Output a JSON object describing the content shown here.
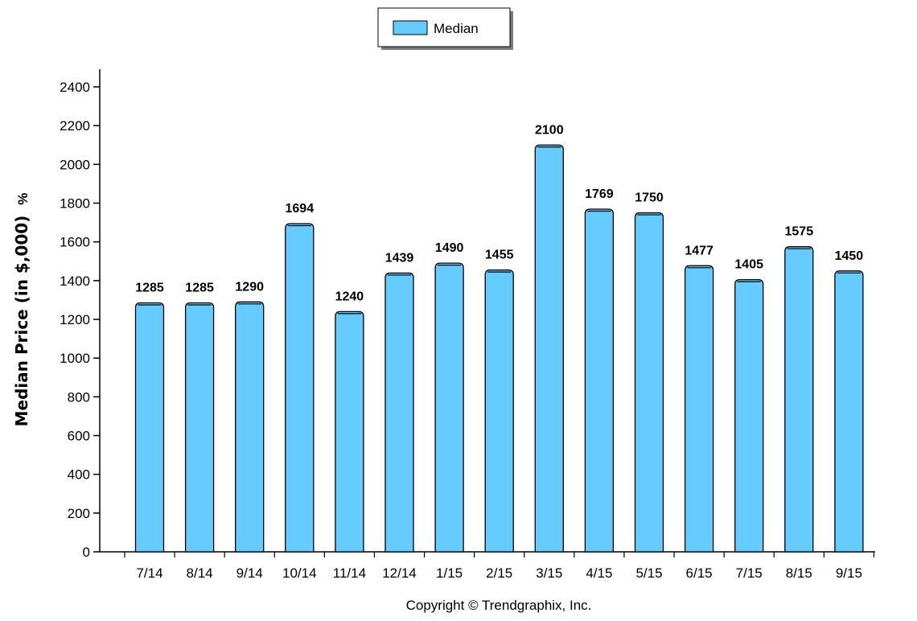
{
  "chart_data": {
    "type": "bar",
    "categories": [
      "7/14",
      "8/14",
      "9/14",
      "10/14",
      "11/14",
      "12/14",
      "1/15",
      "2/15",
      "3/15",
      "4/15",
      "5/15",
      "6/15",
      "7/15",
      "8/15",
      "9/15"
    ],
    "series": [
      {
        "name": "Median",
        "values": [
          1285,
          1285,
          1290,
          1694,
          1240,
          1439,
          1490,
          1455,
          2100,
          1769,
          1750,
          1477,
          1405,
          1575,
          1450
        ]
      }
    ],
    "data_labels": [
      "1285",
      "1285",
      "1290",
      "1694",
      "1240",
      "1439",
      "1490",
      "1455",
      "2100",
      "1769",
      "1750",
      "1477",
      "1405",
      "1575",
      "1450"
    ],
    "ylabel": "Median Price (in $,000)",
    "ylabel_unit": "%",
    "ylim": [
      0,
      2400
    ],
    "yticks": [
      "0",
      "200",
      "400",
      "600",
      "800",
      "1000",
      "1200",
      "1400",
      "1600",
      "1800",
      "2000",
      "2200",
      "2400"
    ],
    "legend_position": "top-center",
    "grid": false,
    "bar_color": "#66CCFF",
    "footer": "Copyright © Trendgraphix, Inc."
  }
}
